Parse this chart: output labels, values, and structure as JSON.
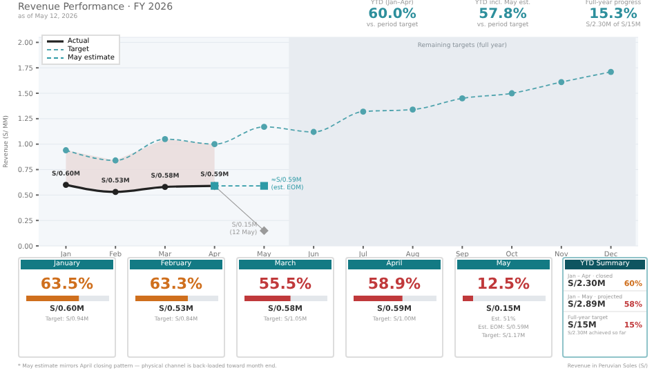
{
  "chart_data": [
    {
      "type": "line",
      "title": "Revenue Performance · FY 2026",
      "subtitle": "as of May 12, 2026",
      "ylabel": "Revenue (S/ MM)",
      "categories": [
        "Jan",
        "Feb",
        "Mar",
        "Apr",
        "May",
        "Jun",
        "Jul",
        "Aug",
        "Sep",
        "Oct",
        "Nov",
        "Dec"
      ],
      "series": [
        {
          "name": "Actual",
          "color": "#222222",
          "marker": "circle",
          "line_style": "solid",
          "values": [
            0.6,
            0.53,
            0.58,
            0.59,
            null,
            null,
            null,
            null,
            null,
            null,
            null,
            null
          ],
          "lower": [
            0.6,
            0.53,
            0.58,
            0.59,
            null,
            null,
            null,
            null,
            null,
            null,
            null,
            null
          ],
          "upper": [
            0.94,
            0.84,
            1.05,
            1.0,
            null,
            null,
            null,
            null,
            null,
            null,
            null,
            null
          ],
          "value_labels": [
            "S/0.60M",
            "S/0.53M",
            "S/0.58M",
            "S/0.59M",
            null,
            null,
            null,
            null,
            null,
            null,
            null,
            null
          ]
        },
        {
          "name": "Target",
          "color": "#4fa3ad",
          "marker": "circle",
          "line_style": "dashed",
          "values": [
            0.94,
            0.84,
            1.05,
            1.0,
            1.17,
            1.12,
            1.32,
            1.34,
            1.45,
            1.5,
            1.61,
            1.71
          ]
        },
        {
          "name": "May estimate",
          "color": "#2e9aa6",
          "marker": "square",
          "line_style": "dashed",
          "values": [
            null,
            null,
            null,
            0.59,
            0.59,
            null,
            null,
            null,
            null,
            null,
            null,
            null
          ],
          "value_labels": [
            null,
            null,
            null,
            null,
            "≈S/0.59M\n(est. EOM)",
            null,
            null,
            null,
            null,
            null,
            null,
            null
          ]
        },
        {
          "color": "#9a9a9a",
          "marker": "diamond",
          "line_style": "solid",
          "values": [
            null,
            null,
            null,
            0.59,
            0.15,
            null,
            null,
            null,
            null,
            null,
            null,
            null
          ],
          "value_labels": [
            null,
            null,
            null,
            null,
            "S/0.15M\n(12 May)",
            null,
            null,
            null,
            null,
            null,
            null,
            null
          ]
        }
      ],
      "ylim": [
        0,
        2.05
      ],
      "yticks": [
        {
          "value": 0,
          "label": "0.00"
        },
        {
          "value": 0.25,
          "label": "0.25"
        },
        {
          "value": 0.5,
          "label": "0.50"
        },
        {
          "value": 0.75,
          "label": "0.75"
        },
        {
          "value": 1,
          "label": "1.00"
        },
        {
          "value": 1.25,
          "label": "1.25"
        },
        {
          "value": 1.5,
          "label": "1.50"
        },
        {
          "value": 1.75,
          "label": "1.75"
        },
        {
          "value": 2,
          "label": "2.00"
        }
      ],
      "bands": [
        {
          "axis": "x",
          "from": "Jun",
          "to": "Dec",
          "label": "Remaining targets (full year)",
          "color": "#e8ecf1"
        }
      ],
      "grid": "y",
      "legend": "top left"
    },
    {
      "type": "other",
      "categories": [
        "YTD (Jan–Apr)",
        "YTD incl. May est.",
        "Full-year progress"
      ],
      "value_labels": [
        "60.0%",
        "57.8%",
        "15.3%"
      ],
      "annotations": [
        {
          "text": "vs. period target",
          "x": "YTD (Jan–Apr)"
        },
        {
          "text": "vs. period target",
          "x": "YTD incl. May est."
        },
        {
          "text": "S/2.30M of S/15M",
          "x": "Full-year progress"
        }
      ]
    },
    {
      "type": "other",
      "categories": [
        "January",
        "February",
        "March",
        "April",
        "May"
      ],
      "values": [
        63.5,
        63.3,
        55.5,
        58.9,
        12.5
      ],
      "value_labels": [
        "63.5%",
        "63.3%",
        "55.5%",
        "58.9%",
        "12.5%"
      ],
      "annotations": [
        {
          "text": "S/0.60M",
          "x": "January"
        },
        {
          "text": "Target: S/0.94M",
          "x": "January"
        },
        {
          "text": "S/0.53M",
          "x": "February"
        },
        {
          "text": "Target: S/0.84M",
          "x": "February"
        },
        {
          "text": "S/0.58M",
          "x": "March"
        },
        {
          "text": "Target: S/1.05M",
          "x": "March"
        },
        {
          "text": "S/0.59M",
          "x": "April"
        },
        {
          "text": "Target: S/1.00M",
          "x": "April"
        },
        {
          "text": "S/0.15M",
          "x": "May"
        },
        {
          "text": "Est. 51%",
          "x": "May"
        },
        {
          "text": "Est. EOM: S/0.59M",
          "x": "May"
        },
        {
          "text": "Target: S/1.17M",
          "x": "May"
        },
        "* May estimate mirrors April closing pattern — physical channel is back-loaded toward month end."
      ]
    },
    {
      "type": "other",
      "title": "YTD Summary",
      "categories": [
        "Jan – Apr · closed",
        "Jan – May · projected",
        "Full-year target"
      ],
      "values": [
        60,
        58,
        15
      ],
      "value_labels": [
        "60%",
        "58%",
        "15%"
      ],
      "annotations": [
        {
          "text": "S/2.30M",
          "x": "Jan – Apr · closed"
        },
        {
          "text": "S/2.89M",
          "x": "Jan – May · projected"
        },
        {
          "text": "S/15M",
          "x": "Full-year target"
        },
        {
          "text": "S/2.30M achieved so far",
          "x": "Full-year target"
        },
        "Revenue in Peruvian Soles (S/)"
      ]
    }
  ]
}
